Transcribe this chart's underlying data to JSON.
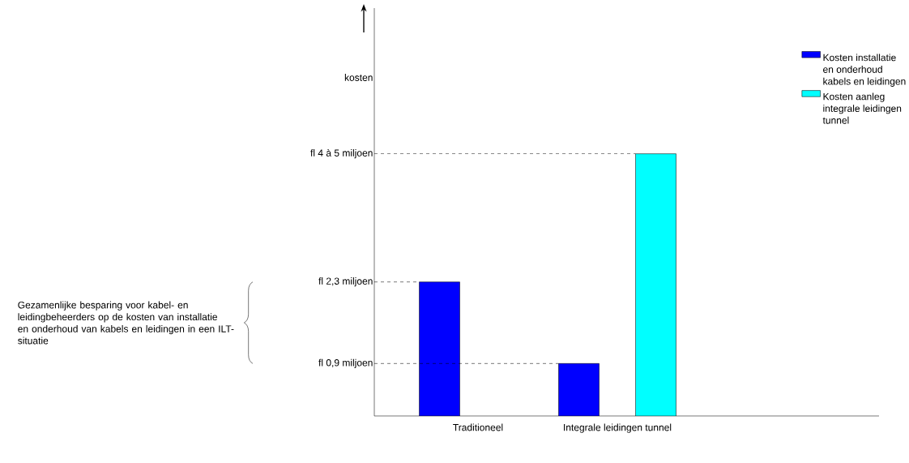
{
  "chart_data": {
    "type": "bar",
    "ylim": [
      0,
      7
    ],
    "categories": [
      "Traditioneel",
      "Integrale leidingen tunnel"
    ],
    "series": [
      {
        "name": "Kosten installatie en onderhoud kabels en leidingen",
        "color": "#0000ff",
        "values": [
          2.3,
          0.9
        ],
        "value_labels": [
          "fl 2,3 miljoen",
          "fl 0,9 miljoen"
        ]
      },
      {
        "name": "Kosten aanleg integrale leidingen tunnel",
        "color": "#00ffff",
        "values": [
          null,
          4.5
        ],
        "value_labels": [
          null,
          "fl 4 à 5 miljoen"
        ]
      }
    ],
    "ylabel": "kosten",
    "legend": "top right",
    "annotations": [
      "Gezamenlijke besparing voor kabel- en leidingbeheerders op de kosten van installatie en onderhoud van kabels en leidingen in een ILT-situatie"
    ]
  }
}
